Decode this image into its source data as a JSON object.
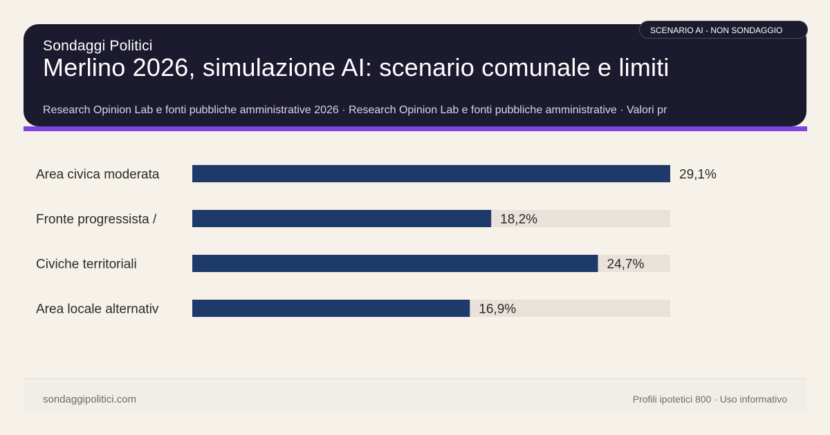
{
  "header": {
    "brand": "Sondaggi Politici",
    "title": "Merlino 2026, simulazione AI: scenario comunale e limiti",
    "subtitle": "Research Opinion Lab e fonti pubbliche amministrative 2026 · Research Opinion Lab e fonti pubbliche amministrative · Valori pr",
    "badge": "SCENARIO AI - NON SONDAGGIO"
  },
  "colors": {
    "header_bg": "#1b1a2e",
    "accent": "#7b43e0",
    "bar": "#1e3a6a",
    "track": "#e8e2da",
    "page_bg": "#f6f2ea"
  },
  "chart_data": {
    "type": "bar",
    "orientation": "horizontal",
    "categories": [
      "Area civica moderata",
      "Fronte progressista /",
      "Civiche territoriali",
      "Area locale alternativ"
    ],
    "values": [
      29.1,
      18.2,
      24.7,
      16.9
    ],
    "value_labels": [
      "29,1%",
      "18,2%",
      "24,7%",
      "16,9%"
    ],
    "xlim": [
      0,
      29.1
    ],
    "grid": false,
    "legend": "none"
  },
  "footer": {
    "site": "sondaggipolitici.com",
    "note": "Profili ipotetici 800 · Uso informativo"
  }
}
